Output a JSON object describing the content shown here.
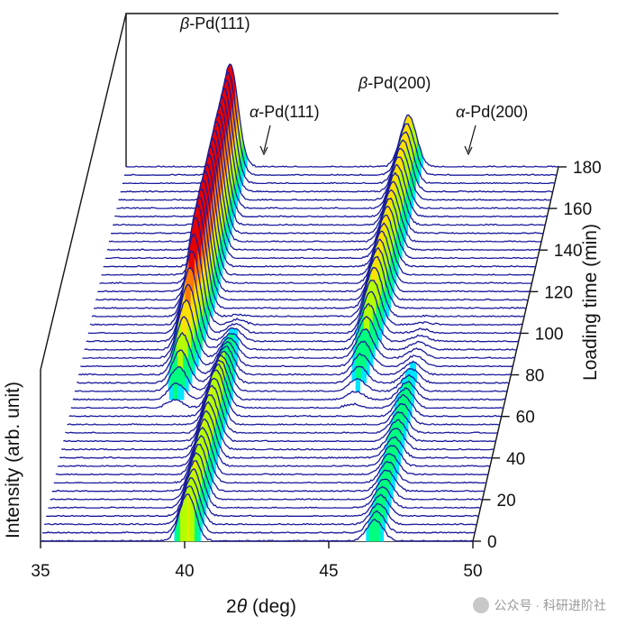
{
  "chart_data": {
    "type": "waterfall",
    "xlabel_prefix": "2",
    "xlabel_symbol": "θ",
    "xlabel_suffix": " (deg)",
    "ylabel": "Intensity (arb. unit)",
    "zlabel": "Loading time (min)",
    "xlim": [
      35,
      50
    ],
    "x_ticks": [
      "35",
      "40",
      "45",
      "50"
    ],
    "z_ticks": [
      "0",
      "20",
      "40",
      "60",
      "80",
      "100",
      "120",
      "140",
      "160",
      "180"
    ],
    "zlim": [
      0,
      180
    ],
    "scan_interval_min": 4,
    "line_color": "#1a1a9c",
    "colormap": [
      "#00e5ff",
      "#00ff7f",
      "#b4ff00",
      "#ffe000",
      "#ff7a00",
      "#e60000"
    ],
    "peak_labels": [
      {
        "greek": "β",
        "text": "-Pd(111)"
      },
      {
        "greek": "α",
        "text": "-Pd(111)"
      },
      {
        "greek": "β",
        "text": "-Pd(200)"
      },
      {
        "greek": "α",
        "text": "-Pd(200)"
      }
    ],
    "peaks": {
      "alpha_111": {
        "two_theta": 40.1,
        "intensity_start": 1.0,
        "intensity_end": 0.0,
        "transition_min": [
          60,
          110
        ]
      },
      "beta_111": {
        "two_theta": 38.6,
        "intensity_start": 0.0,
        "intensity_end": 2.2,
        "transition_min": [
          60,
          110
        ]
      },
      "alpha_200": {
        "two_theta": 46.6,
        "intensity_start": 0.45,
        "intensity_end": 0.0,
        "transition_min": [
          60,
          110
        ]
      },
      "beta_200": {
        "two_theta": 44.8,
        "intensity_start": 0.0,
        "intensity_end": 1.1,
        "transition_min": [
          60,
          110
        ]
      }
    }
  },
  "watermark": {
    "text": "公众号 · 科研进阶社"
  }
}
